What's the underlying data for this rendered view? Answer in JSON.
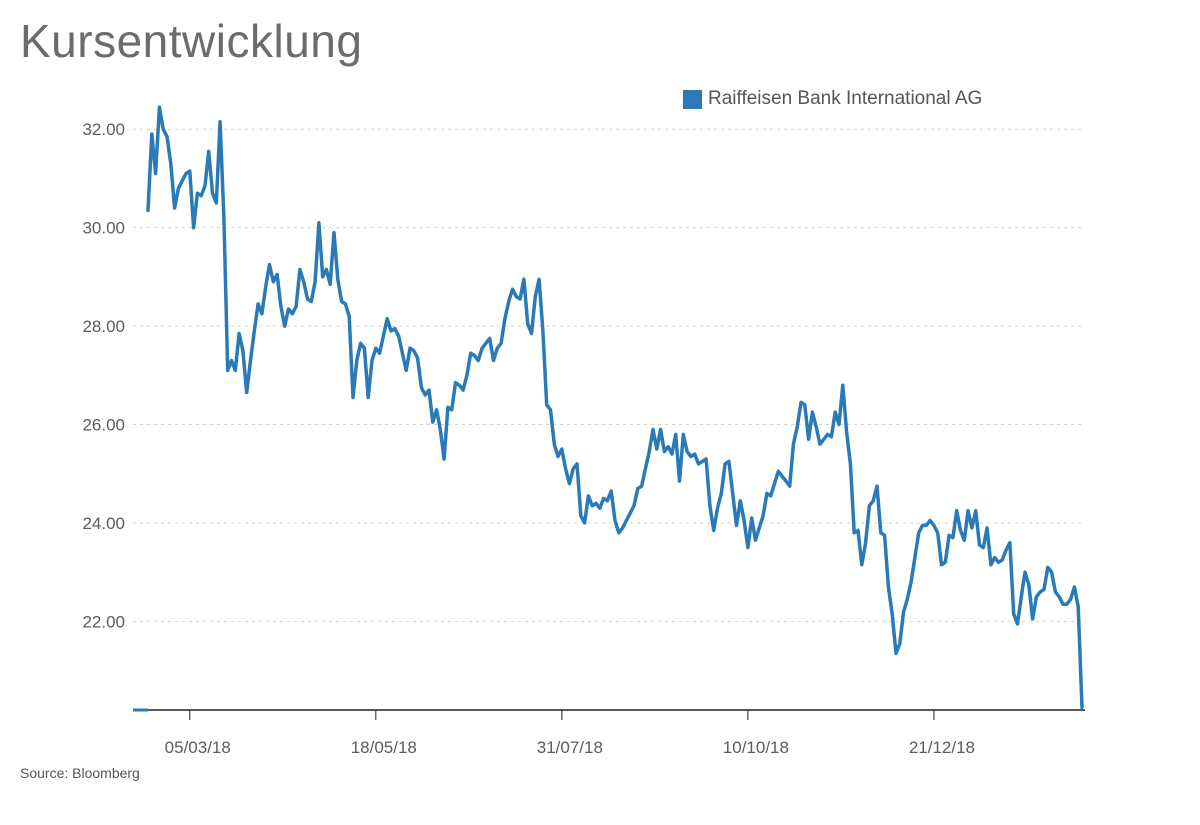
{
  "chart_data": {
    "type": "line",
    "title": "Kursentwicklung",
    "source": "Source: Bloomberg",
    "xlabel": "",
    "ylabel": "",
    "legend_position": "top-right",
    "grid": "horizontal-dashed",
    "ylim": [
      20.2,
      33.0
    ],
    "yticks": [
      "22.00",
      "24.00",
      "26.00",
      "28.00",
      "30.00",
      "32.00"
    ],
    "ytick_values": [
      22,
      24,
      26,
      28,
      30,
      32
    ],
    "xticks": [
      "05/03/18",
      "18/05/18",
      "31/07/18",
      "10/10/18",
      "21/12/18"
    ],
    "xtick_index": [
      11,
      60,
      109,
      158,
      207
    ],
    "series": [
      {
        "name": "Raiffeisen Bank International AG",
        "color": "#2a7ab8",
        "values": [
          30.35,
          31.9,
          31.1,
          32.45,
          32.0,
          31.85,
          31.3,
          30.4,
          30.8,
          30.95,
          31.1,
          31.15,
          30.0,
          30.7,
          30.65,
          30.85,
          31.55,
          30.7,
          30.5,
          32.15,
          30.2,
          27.1,
          27.3,
          27.1,
          27.85,
          27.5,
          26.65,
          27.3,
          27.9,
          28.45,
          28.25,
          28.8,
          29.25,
          28.9,
          29.05,
          28.4,
          28.0,
          28.35,
          28.25,
          28.4,
          29.15,
          28.9,
          28.55,
          28.5,
          28.9,
          30.1,
          29.0,
          29.15,
          28.85,
          29.9,
          28.95,
          28.5,
          28.45,
          28.2,
          26.55,
          27.3,
          27.65,
          27.55,
          26.55,
          27.3,
          27.55,
          27.45,
          27.8,
          28.15,
          27.9,
          27.95,
          27.8,
          27.45,
          27.1,
          27.55,
          27.5,
          27.35,
          26.75,
          26.6,
          26.7,
          26.05,
          26.3,
          25.9,
          25.3,
          26.35,
          26.3,
          26.85,
          26.8,
          26.7,
          27.0,
          27.45,
          27.4,
          27.3,
          27.55,
          27.65,
          27.75,
          27.3,
          27.55,
          27.65,
          28.15,
          28.5,
          28.75,
          28.6,
          28.55,
          28.95,
          28.05,
          27.85,
          28.6,
          28.95,
          27.9,
          26.4,
          26.3,
          25.6,
          25.35,
          25.5,
          25.1,
          24.8,
          25.1,
          25.2,
          24.15,
          24.0,
          24.55,
          24.35,
          24.4,
          24.3,
          24.5,
          24.45,
          24.65,
          24.05,
          23.8,
          23.9,
          24.05,
          24.2,
          24.35,
          24.7,
          24.75,
          25.1,
          25.45,
          25.9,
          25.5,
          25.9,
          25.45,
          25.55,
          25.4,
          25.8,
          24.85,
          25.8,
          25.45,
          25.35,
          25.4,
          25.2,
          25.25,
          25.3,
          24.35,
          23.85,
          24.3,
          24.6,
          25.2,
          25.25,
          24.6,
          23.95,
          24.45,
          24.05,
          23.5,
          24.1,
          23.65,
          23.9,
          24.15,
          24.6,
          24.55,
          24.8,
          25.05,
          24.95,
          24.85,
          24.75,
          25.6,
          25.95,
          26.45,
          26.4,
          25.7,
          26.25,
          25.95,
          25.6,
          25.7,
          25.8,
          25.75,
          26.25,
          26.0,
          26.8,
          25.85,
          25.2,
          23.8,
          23.85,
          23.15,
          23.6,
          24.35,
          24.45,
          24.75,
          23.8,
          23.75,
          22.7,
          22.15,
          21.35,
          21.55,
          22.2,
          22.45,
          22.8,
          23.3,
          23.8,
          23.95,
          23.95,
          24.05,
          23.95,
          23.8,
          23.15,
          23.2,
          23.75,
          23.7,
          24.25,
          23.85,
          23.65,
          24.25,
          23.9,
          24.25,
          23.55,
          23.5,
          23.9,
          23.15,
          23.3,
          23.2,
          23.25,
          23.45,
          23.6,
          22.15,
          21.95,
          22.5,
          23.0,
          22.75,
          22.05,
          22.5,
          22.6,
          22.65,
          23.1,
          23.0,
          22.6,
          22.5,
          22.35,
          22.35,
          22.45,
          22.7,
          22.3,
          20.25
        ]
      }
    ]
  },
  "colors": {
    "title": "#6b6b6b",
    "axis": "#222222",
    "grid": "#d2d2d2",
    "tick_text": "#5c5c5c"
  }
}
